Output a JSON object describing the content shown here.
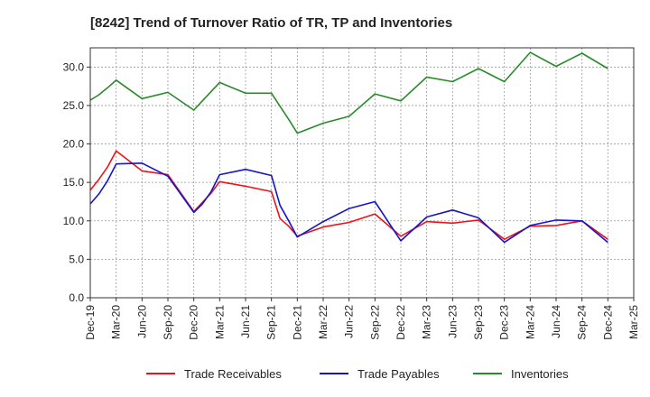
{
  "chart_data": {
    "type": "line",
    "title": "[8242]  Trend of Turnover Ratio of TR, TP and Inventories",
    "xlabel": "",
    "ylabel": "",
    "ylim": [
      0,
      32.5
    ],
    "yticks": [
      "0.0",
      "5.0",
      "10.0",
      "15.0",
      "20.0",
      "25.0",
      "30.0"
    ],
    "x_tick_labels": [
      "Dec-19",
      "Mar-20",
      "Jun-20",
      "Sep-20",
      "Dec-20",
      "Mar-21",
      "Jun-21",
      "Sep-21",
      "Dec-21",
      "Mar-22",
      "Jun-22",
      "Sep-22",
      "Dec-22",
      "Mar-23",
      "Jun-23",
      "Sep-23",
      "Dec-23",
      "Mar-24",
      "Jun-24",
      "Sep-24",
      "Dec-24",
      "Mar-25"
    ],
    "x": [
      "Dec-19",
      "Jan-20",
      "Feb-20",
      "Mar-20",
      "Jun-20",
      "Sep-20",
      "Dec-20",
      "Jan-21",
      "Feb-21",
      "Mar-21",
      "Jun-21",
      "Sep-21",
      "Oct-21",
      "Nov-21",
      "Dec-21",
      "Mar-22",
      "Jun-22",
      "Sep-22",
      "Dec-22",
      "Mar-23",
      "Jun-23",
      "Sep-23",
      "Dec-23",
      "Mar-24",
      "Jun-24",
      "Sep-24",
      "Dec-24"
    ],
    "grid": true,
    "legend_position": "bottom",
    "series": [
      {
        "name": "Trade Receivables",
        "color": "#e8141b",
        "values": [
          14.0,
          15.4,
          17.0,
          19.1,
          16.5,
          16.0,
          11.2,
          12.4,
          13.6,
          15.1,
          14.5,
          13.8,
          10.3,
          9.3,
          8.0,
          9.2,
          9.8,
          10.9,
          8.0,
          9.9,
          9.7,
          10.1,
          7.6,
          9.3,
          9.4,
          10.0,
          7.6
        ]
      },
      {
        "name": "Trade Payables",
        "color": "#1515c8",
        "values": [
          12.2,
          13.5,
          15.2,
          17.4,
          17.5,
          15.8,
          11.1,
          12.2,
          13.8,
          16.0,
          16.7,
          15.9,
          12.0,
          10.0,
          7.9,
          9.9,
          11.6,
          12.5,
          7.4,
          10.5,
          11.4,
          10.4,
          7.2,
          9.4,
          10.1,
          10.0,
          7.2
        ]
      },
      {
        "name": "Inventories",
        "color": "#2a8a2a",
        "values": [
          25.7,
          26.4,
          27.3,
          28.3,
          25.9,
          26.7,
          24.4,
          25.6,
          26.8,
          28.0,
          26.6,
          26.6,
          24.9,
          23.2,
          21.4,
          22.7,
          23.6,
          26.5,
          25.6,
          28.7,
          28.1,
          29.8,
          28.1,
          31.9,
          30.1,
          31.8,
          29.8
        ]
      }
    ]
  }
}
